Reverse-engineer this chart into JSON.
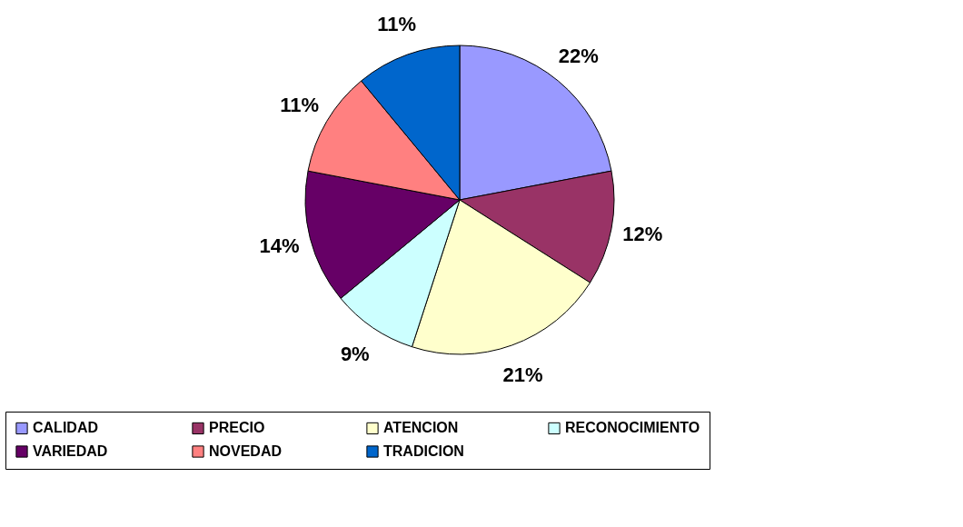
{
  "chart_data": {
    "type": "pie",
    "categories": [
      "CALIDAD",
      "PRECIO",
      "ATENCION",
      "RECONOCIMIENTO",
      "VARIEDAD",
      "NOVEDAD",
      "TRADICION"
    ],
    "values": [
      22,
      12,
      21,
      9,
      14,
      11,
      11
    ],
    "value_labels": [
      "22%",
      "12%",
      "21%",
      "9%",
      "14%",
      "11%",
      "11%"
    ],
    "colors": [
      "#9999ff",
      "#993366",
      "#ffffcc",
      "#ccffff",
      "#660066",
      "#ff8080",
      "#0066cc"
    ],
    "legend": "bottom"
  }
}
